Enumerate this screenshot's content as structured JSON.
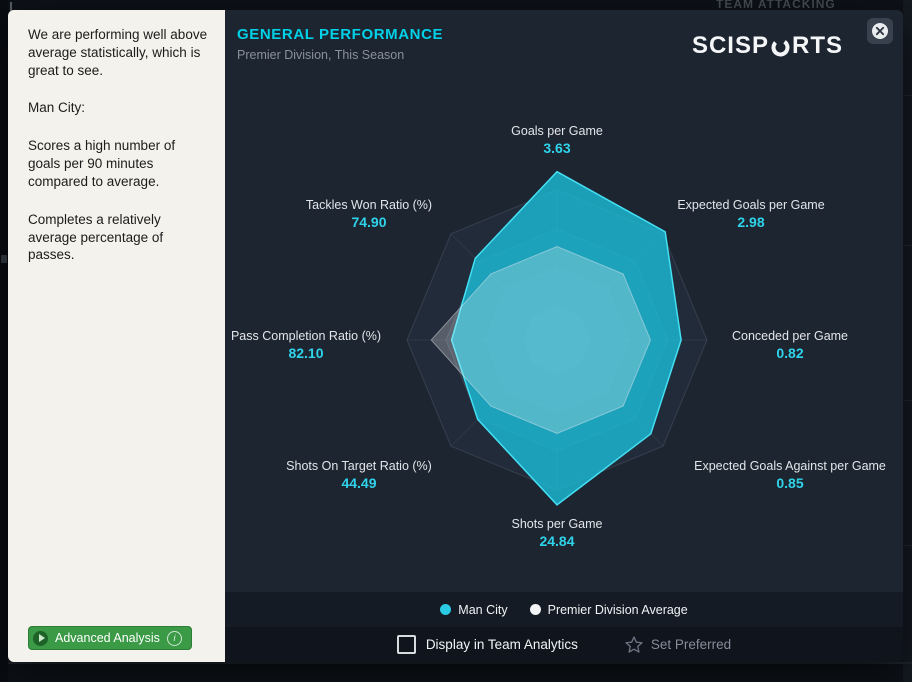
{
  "background": {
    "top_right_text": "TEAM ATTACKING"
  },
  "analysis_panel": {
    "paragraphs": [
      "We are performing well above average statistically, which is great to see.",
      "Man City:",
      "Scores a high number of goals per 90 minutes compared to average.",
      "Completes a relatively average percentage of passes."
    ],
    "button_label": "Advanced Analysis",
    "info_icon": "i"
  },
  "dialog": {
    "title": "GENERAL PERFORMANCE",
    "subtitle": "Premier Division, This Season",
    "brand_left": "SCISP",
    "brand_right": "RTS"
  },
  "chart_data": {
    "type": "radar",
    "title": "GENERAL PERFORMANCE",
    "subtitle": "Premier Division, This Season",
    "axes": [
      {
        "label": "Goals per Game",
        "value": "3.63"
      },
      {
        "label": "Expected Goals per Game",
        "value": "2.98"
      },
      {
        "label": "Conceded per Game",
        "value": "0.82"
      },
      {
        "label": "Expected Goals Against per Game",
        "value": "0.85"
      },
      {
        "label": "Shots per Game",
        "value": "24.84"
      },
      {
        "label": "Shots On Target Ratio (%)",
        "value": "44.49"
      },
      {
        "label": "Pass Completion Ratio (%)",
        "value": "82.10"
      },
      {
        "label": "Tackles Won Ratio (%)",
        "value": "74.90"
      }
    ],
    "series": [
      {
        "name": "Man City",
        "color": "#2bcbe4",
        "values_normalized": [
          0.99,
          0.9,
          0.73,
          0.78,
          0.97,
          0.66,
          0.62,
          0.68
        ]
      },
      {
        "name": "Premier Division Average",
        "color": "#f2f4f6",
        "values_normalized": [
          0.55,
          0.55,
          0.55,
          0.55,
          0.55,
          0.55,
          0.74,
          0.55
        ]
      }
    ],
    "grid_levels": [
      1.0,
      0.74,
      0.48,
      0.22
    ],
    "grid_shape": "octagon",
    "legend_position": "bottom"
  },
  "legend": {
    "items": [
      {
        "label": "Man City",
        "color": "#2bcbe4"
      },
      {
        "label": "Premier Division Average",
        "color": "#f2f4f6"
      }
    ]
  },
  "footer": {
    "checkbox_label": "Display in Team Analytics",
    "checkbox_checked": false,
    "set_preferred_label": "Set Preferred"
  }
}
